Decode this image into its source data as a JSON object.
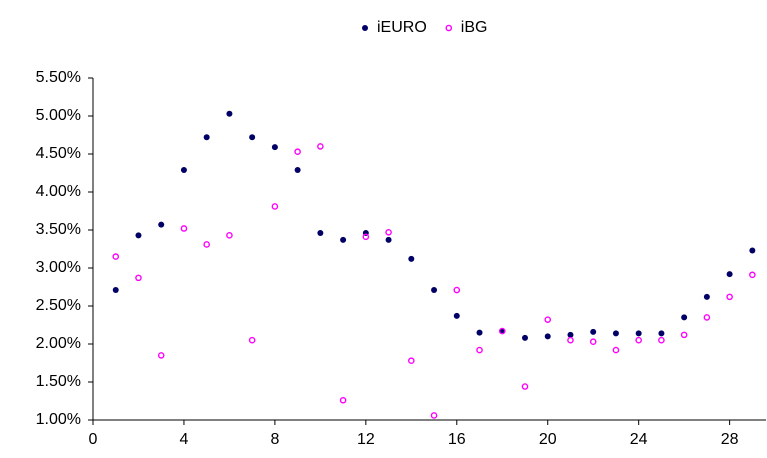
{
  "chart_data": {
    "type": "scatter",
    "x": [
      1,
      2,
      3,
      4,
      5,
      6,
      7,
      8,
      9,
      10,
      11,
      12,
      13,
      14,
      15,
      16,
      17,
      18,
      19,
      20,
      21,
      22,
      23,
      24,
      25,
      26,
      27,
      28,
      29
    ],
    "series": [
      {
        "name": "iEURO",
        "color": "#000066",
        "marker": "filled",
        "values": [
          2.71,
          3.43,
          3.57,
          4.29,
          4.72,
          5.03,
          4.72,
          4.59,
          4.29,
          3.46,
          3.37,
          3.46,
          3.37,
          3.12,
          2.71,
          2.37,
          2.15,
          2.17,
          2.08,
          2.1,
          2.12,
          2.16,
          2.14,
          2.14,
          2.14,
          2.35,
          2.62,
          2.92,
          3.23
        ]
      },
      {
        "name": "iBG",
        "color": "#ff00ff",
        "marker": "hollow",
        "values": [
          3.15,
          2.87,
          1.85,
          3.52,
          3.31,
          3.43,
          2.05,
          3.81,
          4.53,
          4.6,
          1.26,
          3.41,
          3.47,
          1.78,
          1.06,
          2.71,
          1.92,
          2.17,
          1.44,
          2.32,
          2.05,
          2.03,
          1.92,
          2.05,
          2.05,
          2.12,
          2.35,
          2.62,
          2.91
        ]
      }
    ],
    "xlim": [
      0,
      29.6
    ],
    "xticks": [
      0,
      4,
      8,
      12,
      16,
      20,
      24,
      28
    ],
    "ylim": [
      1,
      5.5
    ],
    "yticks": [
      {
        "value": 1,
        "label": "1.00%"
      },
      {
        "value": 1.5,
        "label": "1.50%"
      },
      {
        "value": 2,
        "label": "2.00%"
      },
      {
        "value": 2.5,
        "label": "2.50%"
      },
      {
        "value": 3,
        "label": "3.00%"
      },
      {
        "value": 3.5,
        "label": "3.50%"
      },
      {
        "value": 4,
        "label": "4.00%"
      },
      {
        "value": 4.5,
        "label": "4.50%"
      },
      {
        "value": 5,
        "label": "5.00%"
      },
      {
        "value": 5.5,
        "label": "5.50%"
      }
    ],
    "grid": false,
    "legend": "top"
  }
}
